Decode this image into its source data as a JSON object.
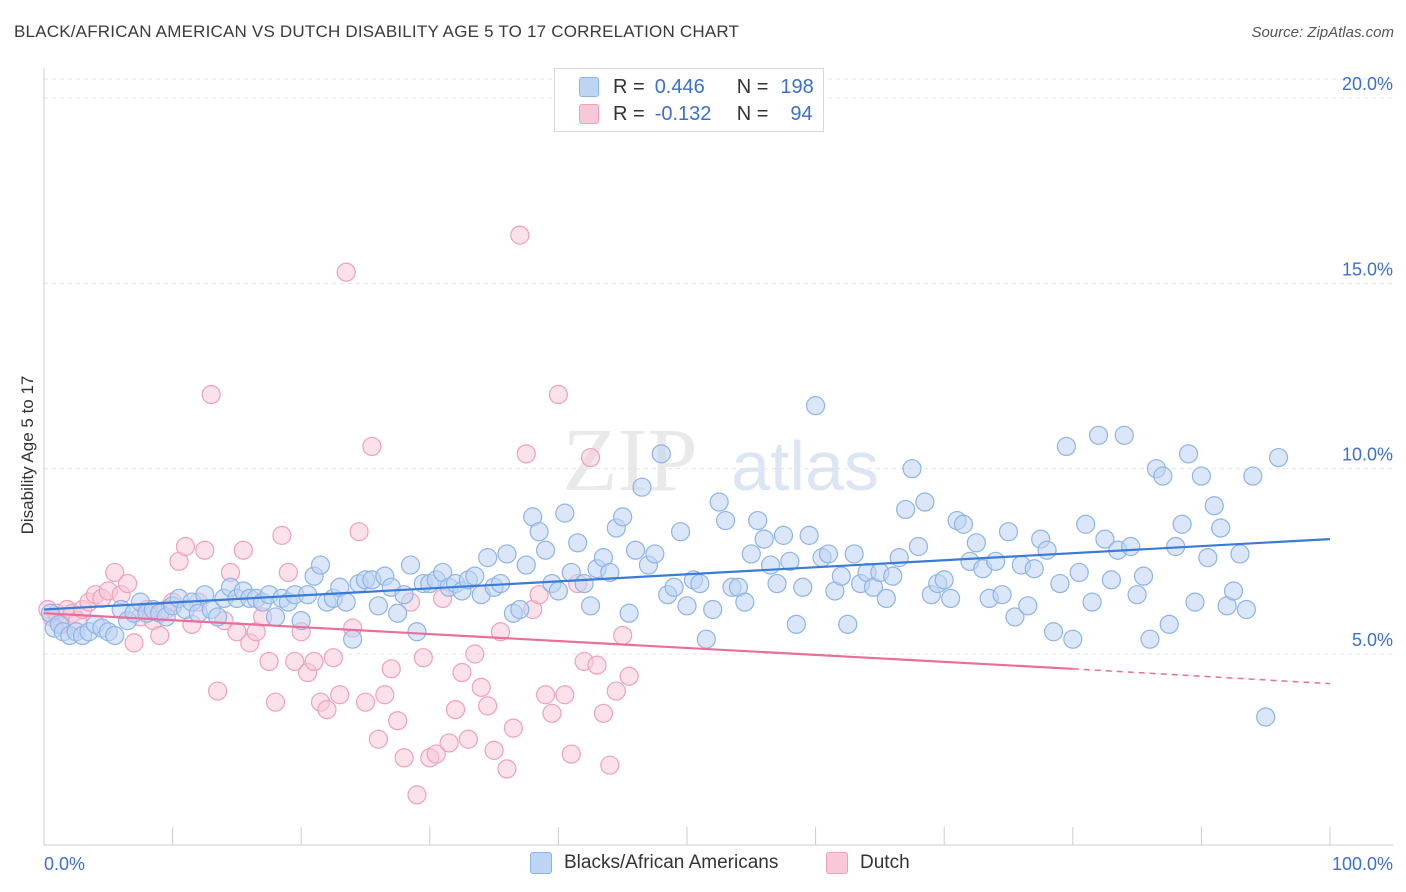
{
  "title": "BLACK/AFRICAN AMERICAN VS DUTCH DISABILITY AGE 5 TO 17 CORRELATION CHART",
  "source": "Source: ZipAtlas.com",
  "watermark": {
    "zip": "ZIP",
    "atlas": "atlas"
  },
  "legend": {
    "r_label": "R =",
    "n_label": "N =",
    "rows": [
      {
        "r": "0.446",
        "n": "198",
        "color": "#8db4e8",
        "fill": "#bdd4f3"
      },
      {
        "r": "-0.132",
        "n": "94",
        "color": "#f0a0bb",
        "fill": "#f8c8d8"
      }
    ]
  },
  "bottom_legend": [
    "Blacks/African Americans",
    "Dutch"
  ],
  "chart_data": {
    "type": "scatter",
    "title": "BLACK/AFRICAN AMERICAN VS DUTCH DISABILITY AGE 5 TO 17 CORRELATION CHART",
    "xlabel": "",
    "ylabel": "Disability Age 5 to 17",
    "xlim": [
      0,
      100
    ],
    "ylim": [
      0,
      21
    ],
    "x_tick_labels": [
      "0.0%",
      "100.0%"
    ],
    "y_ticks": [
      5,
      10,
      15,
      20
    ],
    "y_tick_labels": [
      "5.0%",
      "10.0%",
      "15.0%",
      "20.0%"
    ],
    "grid": true,
    "colors": {
      "blue": "#3a7bd5",
      "pink": "#e86f99",
      "blue_point": "#8db4e8",
      "pink_point": "#f0a0bb"
    },
    "series": [
      {
        "name": "Blacks/African Americans",
        "trend": {
          "x": [
            0,
            100
          ],
          "y": [
            6.2,
            8.1
          ]
        },
        "points": [
          [
            0.5,
            6.1
          ],
          [
            0.8,
            5.7
          ],
          [
            1.2,
            5.8
          ],
          [
            1.5,
            5.6
          ],
          [
            2,
            5.5
          ],
          [
            2.5,
            5.6
          ],
          [
            3,
            5.5
          ],
          [
            3.5,
            5.6
          ],
          [
            4,
            5.8
          ],
          [
            4.5,
            5.7
          ],
          [
            5,
            5.6
          ],
          [
            5.5,
            5.5
          ],
          [
            6,
            6.2
          ],
          [
            6.5,
            5.9
          ],
          [
            7,
            6.1
          ],
          [
            7.5,
            6.4
          ],
          [
            8,
            6.1
          ],
          [
            8.5,
            6.2
          ],
          [
            9,
            6.1
          ],
          [
            9.5,
            6.0
          ],
          [
            10,
            6.3
          ],
          [
            10.5,
            6.5
          ],
          [
            11,
            6.2
          ],
          [
            11.5,
            6.4
          ],
          [
            12,
            6.1
          ],
          [
            12.5,
            6.6
          ],
          [
            13,
            6.2
          ],
          [
            13.5,
            6.0
          ],
          [
            14,
            6.5
          ],
          [
            14.5,
            6.8
          ],
          [
            15,
            6.5
          ],
          [
            15.5,
            6.7
          ],
          [
            16,
            6.5
          ],
          [
            16.5,
            6.5
          ],
          [
            17,
            6.4
          ],
          [
            17.5,
            6.6
          ],
          [
            18,
            6.0
          ],
          [
            18.5,
            6.5
          ],
          [
            19,
            6.4
          ],
          [
            19.5,
            6.6
          ],
          [
            20,
            5.9
          ],
          [
            20.5,
            6.6
          ],
          [
            21,
            7.1
          ],
          [
            21.5,
            7.4
          ],
          [
            22,
            6.4
          ],
          [
            22.5,
            6.5
          ],
          [
            23,
            6.8
          ],
          [
            23.5,
            6.4
          ],
          [
            24,
            5.4
          ],
          [
            24.5,
            6.9
          ],
          [
            25,
            7.0
          ],
          [
            25.5,
            7.0
          ],
          [
            26,
            6.3
          ],
          [
            26.5,
            7.1
          ],
          [
            27,
            6.8
          ],
          [
            27.5,
            6.1
          ],
          [
            28,
            6.6
          ],
          [
            28.5,
            7.4
          ],
          [
            29,
            5.6
          ],
          [
            29.5,
            6.9
          ],
          [
            30,
            6.9
          ],
          [
            30.5,
            7.0
          ],
          [
            31,
            7.2
          ],
          [
            31.5,
            6.8
          ],
          [
            32,
            6.9
          ],
          [
            32.5,
            6.7
          ],
          [
            33,
            7.0
          ],
          [
            33.5,
            7.1
          ],
          [
            34,
            6.6
          ],
          [
            34.5,
            7.6
          ],
          [
            35,
            6.8
          ],
          [
            35.5,
            6.9
          ],
          [
            36,
            7.7
          ],
          [
            36.5,
            6.1
          ],
          [
            37,
            6.2
          ],
          [
            37.5,
            7.4
          ],
          [
            38,
            8.7
          ],
          [
            38.5,
            8.3
          ],
          [
            39,
            7.8
          ],
          [
            39.5,
            6.9
          ],
          [
            40,
            6.7
          ],
          [
            40.5,
            8.8
          ],
          [
            41,
            7.2
          ],
          [
            41.5,
            8.0
          ],
          [
            42,
            6.9
          ],
          [
            42.5,
            6.3
          ],
          [
            43,
            7.3
          ],
          [
            43.5,
            7.6
          ],
          [
            44,
            7.2
          ],
          [
            44.5,
            8.4
          ],
          [
            45,
            8.7
          ],
          [
            45.5,
            6.1
          ],
          [
            46,
            7.8
          ],
          [
            46.5,
            9.5
          ],
          [
            47,
            7.4
          ],
          [
            47.5,
            7.7
          ],
          [
            48,
            10.4
          ],
          [
            48.5,
            6.6
          ],
          [
            49,
            6.8
          ],
          [
            49.5,
            8.3
          ],
          [
            50,
            6.3
          ],
          [
            50.5,
            7.0
          ],
          [
            51,
            6.9
          ],
          [
            51.5,
            5.4
          ],
          [
            52,
            6.2
          ],
          [
            52.5,
            9.1
          ],
          [
            53,
            8.6
          ],
          [
            53.5,
            6.8
          ],
          [
            54,
            6.8
          ],
          [
            54.5,
            6.4
          ],
          [
            55,
            7.7
          ],
          [
            55.5,
            8.6
          ],
          [
            56,
            8.1
          ],
          [
            56.5,
            7.4
          ],
          [
            57,
            6.9
          ],
          [
            57.5,
            8.2
          ],
          [
            58,
            7.5
          ],
          [
            58.5,
            5.8
          ],
          [
            59,
            6.8
          ],
          [
            59.5,
            8.2
          ],
          [
            60,
            11.7
          ],
          [
            60.5,
            7.6
          ],
          [
            61,
            7.7
          ],
          [
            61.5,
            6.7
          ],
          [
            62,
            7.1
          ],
          [
            62.5,
            5.8
          ],
          [
            63,
            7.7
          ],
          [
            63.5,
            6.9
          ],
          [
            64,
            7.2
          ],
          [
            64.5,
            6.8
          ],
          [
            65,
            7.2
          ],
          [
            65.5,
            6.5
          ],
          [
            66,
            7.1
          ],
          [
            66.5,
            7.6
          ],
          [
            67,
            8.9
          ],
          [
            67.5,
            10.0
          ],
          [
            68,
            7.9
          ],
          [
            68.5,
            9.1
          ],
          [
            69,
            6.6
          ],
          [
            69.5,
            6.9
          ],
          [
            70,
            7.0
          ],
          [
            70.5,
            6.5
          ],
          [
            71,
            8.6
          ],
          [
            71.5,
            8.5
          ],
          [
            72,
            7.5
          ],
          [
            72.5,
            8.0
          ],
          [
            73,
            7.3
          ],
          [
            73.5,
            6.5
          ],
          [
            74,
            7.5
          ],
          [
            74.5,
            6.6
          ],
          [
            75,
            8.3
          ],
          [
            75.5,
            6.0
          ],
          [
            76,
            7.4
          ],
          [
            76.5,
            6.3
          ],
          [
            77,
            7.3
          ],
          [
            77.5,
            8.1
          ],
          [
            78,
            7.8
          ],
          [
            78.5,
            5.6
          ],
          [
            79,
            6.9
          ],
          [
            79.5,
            10.6
          ],
          [
            80,
            5.4
          ],
          [
            80.5,
            7.2
          ],
          [
            81,
            8.5
          ],
          [
            81.5,
            6.4
          ],
          [
            82,
            10.9
          ],
          [
            82.5,
            8.1
          ],
          [
            83,
            7.0
          ],
          [
            83.5,
            7.8
          ],
          [
            84,
            10.9
          ],
          [
            84.5,
            7.9
          ],
          [
            85,
            6.6
          ],
          [
            85.5,
            7.1
          ],
          [
            86,
            5.4
          ],
          [
            86.5,
            10.0
          ],
          [
            87,
            9.8
          ],
          [
            87.5,
            5.8
          ],
          [
            88,
            7.9
          ],
          [
            88.5,
            8.5
          ],
          [
            89,
            10.4
          ],
          [
            89.5,
            6.4
          ],
          [
            90,
            9.8
          ],
          [
            90.5,
            7.6
          ],
          [
            91,
            9.0
          ],
          [
            91.5,
            8.4
          ],
          [
            92,
            6.3
          ],
          [
            92.5,
            6.7
          ],
          [
            93,
            7.7
          ],
          [
            93.5,
            6.2
          ],
          [
            94,
            9.8
          ],
          [
            95,
            3.3
          ],
          [
            96,
            10.3
          ]
        ]
      },
      {
        "name": "Dutch",
        "trend": {
          "x": [
            0,
            80
          ],
          "y": [
            6.1,
            4.6
          ]
        },
        "trend_dashed": {
          "x": [
            80,
            100
          ],
          "y": [
            4.6,
            4.2
          ]
        },
        "points": [
          [
            0.3,
            6.2
          ],
          [
            0.6,
            6.0
          ],
          [
            1,
            6.1
          ],
          [
            1.4,
            5.8
          ],
          [
            1.8,
            6.2
          ],
          [
            2.2,
            6.1
          ],
          [
            2.6,
            5.9
          ],
          [
            3,
            6.2
          ],
          [
            3.5,
            6.4
          ],
          [
            4,
            6.6
          ],
          [
            4.5,
            6.5
          ],
          [
            5,
            6.7
          ],
          [
            5.5,
            7.2
          ],
          [
            6,
            6.6
          ],
          [
            6.5,
            6.9
          ],
          [
            7,
            5.3
          ],
          [
            7.5,
            6.0
          ],
          [
            8,
            6.2
          ],
          [
            8.5,
            5.9
          ],
          [
            9,
            5.5
          ],
          [
            9.5,
            6.2
          ],
          [
            10,
            6.4
          ],
          [
            10.5,
            7.5
          ],
          [
            11,
            7.9
          ],
          [
            11.5,
            5.8
          ],
          [
            12,
            6.4
          ],
          [
            12.5,
            7.8
          ],
          [
            13,
            12.0
          ],
          [
            13.5,
            4.0
          ],
          [
            14,
            5.9
          ],
          [
            14.5,
            7.2
          ],
          [
            15,
            5.6
          ],
          [
            15.5,
            7.8
          ],
          [
            16,
            5.3
          ],
          [
            16.5,
            5.6
          ],
          [
            17,
            6.0
          ],
          [
            17.5,
            4.8
          ],
          [
            18,
            3.7
          ],
          [
            18.5,
            8.2
          ],
          [
            19,
            7.2
          ],
          [
            19.5,
            4.8
          ],
          [
            20,
            5.6
          ],
          [
            20.5,
            4.5
          ],
          [
            21,
            4.8
          ],
          [
            21.5,
            3.7
          ],
          [
            22,
            3.5
          ],
          [
            22.5,
            4.9
          ],
          [
            23,
            3.9
          ],
          [
            23.5,
            15.3
          ],
          [
            24,
            5.7
          ],
          [
            24.5,
            8.3
          ],
          [
            25,
            3.7
          ],
          [
            25.5,
            10.6
          ],
          [
            26,
            2.7
          ],
          [
            26.5,
            3.9
          ],
          [
            27,
            4.6
          ],
          [
            27.5,
            3.2
          ],
          [
            28,
            2.2
          ],
          [
            28.5,
            6.4
          ],
          [
            29,
            1.2
          ],
          [
            29.5,
            4.9
          ],
          [
            30,
            2.2
          ],
          [
            30.5,
            2.3
          ],
          [
            31,
            6.5
          ],
          [
            31.5,
            2.6
          ],
          [
            32,
            3.5
          ],
          [
            32.5,
            4.5
          ],
          [
            33,
            2.7
          ],
          [
            33.5,
            5.0
          ],
          [
            34,
            4.1
          ],
          [
            34.5,
            3.6
          ],
          [
            35,
            2.4
          ],
          [
            35.5,
            5.6
          ],
          [
            36,
            1.9
          ],
          [
            36.5,
            3.0
          ],
          [
            37,
            16.3
          ],
          [
            37.5,
            10.4
          ],
          [
            38,
            6.2
          ],
          [
            38.5,
            6.6
          ],
          [
            39,
            3.9
          ],
          [
            39.5,
            3.4
          ],
          [
            40,
            12.0
          ],
          [
            40.5,
            3.9
          ],
          [
            41,
            2.3
          ],
          [
            41.5,
            6.9
          ],
          [
            42,
            4.8
          ],
          [
            42.5,
            10.3
          ],
          [
            43,
            4.7
          ],
          [
            43.5,
            3.4
          ],
          [
            44,
            2.0
          ],
          [
            44.5,
            4.0
          ],
          [
            45,
            5.5
          ],
          [
            45.5,
            4.4
          ]
        ]
      }
    ]
  }
}
